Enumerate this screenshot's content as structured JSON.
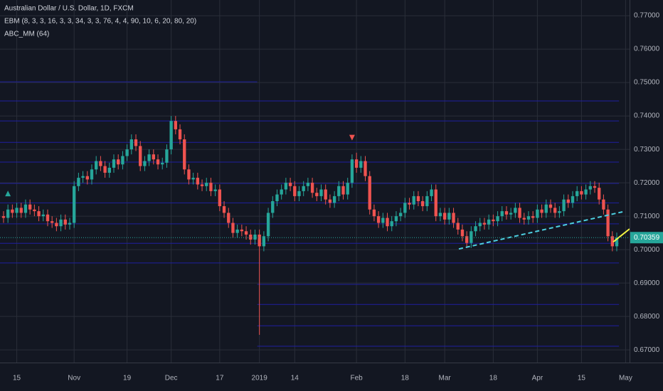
{
  "chart_data": {
    "type": "candlestick",
    "title": "Australian Dollar / U.S. Dollar, 1D, FXCM",
    "indicators": [
      "EBM (8, 3, 3, 16, 3, 3, 34, 3, 3, 76, 4, 4, 90, 10, 6, 20, 80, 20)",
      "ABC_MM (64)"
    ],
    "up_color": "#26a69a",
    "down_color": "#ef5350",
    "x": [
      0,
      1,
      2,
      3,
      4,
      5,
      6,
      7,
      8,
      9,
      10,
      11,
      12,
      13,
      14,
      15,
      16,
      17,
      18,
      19,
      20,
      21,
      22,
      23,
      24,
      25,
      26,
      27,
      28,
      29,
      30,
      31,
      32,
      33,
      34,
      35,
      36,
      37,
      38,
      39,
      40,
      41,
      42,
      43,
      44,
      45,
      46,
      47,
      48,
      49,
      50,
      51,
      52,
      53,
      54,
      55,
      56,
      57,
      58,
      59,
      60,
      61,
      62,
      63,
      64,
      65,
      66,
      67,
      68,
      69,
      70,
      71,
      72,
      73,
      74,
      75,
      76,
      77,
      78,
      79,
      80,
      81,
      82,
      83,
      84,
      85,
      86,
      87,
      88,
      89,
      90,
      91,
      92,
      93,
      94,
      95,
      96,
      97,
      98,
      99,
      100,
      101,
      102,
      103,
      104,
      105,
      106,
      107,
      108,
      109,
      110,
      111,
      112,
      113,
      114,
      115,
      116,
      117,
      118,
      119,
      120,
      121,
      122,
      123,
      124,
      125,
      126,
      127,
      128,
      129,
      130,
      131,
      132,
      133,
      134,
      135,
      136,
      137,
      138,
      139
    ],
    "ohlc": [
      [
        0.71,
        0.7115,
        0.708,
        0.7095
      ],
      [
        0.7095,
        0.7135,
        0.708,
        0.712
      ],
      [
        0.712,
        0.7135,
        0.7095,
        0.711
      ],
      [
        0.711,
        0.714,
        0.7095,
        0.7125
      ],
      [
        0.7125,
        0.714,
        0.7095,
        0.711
      ],
      [
        0.711,
        0.715,
        0.7095,
        0.7135
      ],
      [
        0.7135,
        0.715,
        0.7105,
        0.712
      ],
      [
        0.712,
        0.7135,
        0.71,
        0.7115
      ],
      [
        0.7115,
        0.713,
        0.7085,
        0.71
      ],
      [
        0.71,
        0.712,
        0.7085,
        0.7105
      ],
      [
        0.7105,
        0.712,
        0.707,
        0.7085
      ],
      [
        0.7085,
        0.71,
        0.7065,
        0.708
      ],
      [
        0.708,
        0.7095,
        0.7055,
        0.707
      ],
      [
        0.707,
        0.7105,
        0.7055,
        0.709
      ],
      [
        0.709,
        0.7105,
        0.706,
        0.7075
      ],
      [
        0.7075,
        0.7095,
        0.706,
        0.708
      ],
      [
        0.708,
        0.7205,
        0.7065,
        0.719
      ],
      [
        0.719,
        0.723,
        0.7175,
        0.7215
      ],
      [
        0.7215,
        0.7235,
        0.72,
        0.722
      ],
      [
        0.722,
        0.7235,
        0.7195,
        0.721
      ],
      [
        0.721,
        0.7255,
        0.7195,
        0.724
      ],
      [
        0.724,
        0.728,
        0.7225,
        0.7265
      ],
      [
        0.7265,
        0.728,
        0.7235,
        0.725
      ],
      [
        0.725,
        0.7265,
        0.7215,
        0.723
      ],
      [
        0.723,
        0.726,
        0.7215,
        0.7245
      ],
      [
        0.7245,
        0.7285,
        0.723,
        0.727
      ],
      [
        0.727,
        0.7285,
        0.724,
        0.7255
      ],
      [
        0.7255,
        0.7295,
        0.724,
        0.728
      ],
      [
        0.728,
        0.7315,
        0.7265,
        0.73
      ],
      [
        0.73,
        0.7345,
        0.7285,
        0.733
      ],
      [
        0.733,
        0.7345,
        0.7295,
        0.731
      ],
      [
        0.731,
        0.7325,
        0.7235,
        0.725
      ],
      [
        0.725,
        0.728,
        0.7235,
        0.7265
      ],
      [
        0.7265,
        0.73,
        0.725,
        0.7285
      ],
      [
        0.7285,
        0.73,
        0.7255,
        0.727
      ],
      [
        0.727,
        0.7285,
        0.724,
        0.7255
      ],
      [
        0.7255,
        0.7275,
        0.724,
        0.726
      ],
      [
        0.726,
        0.7315,
        0.7245,
        0.73
      ],
      [
        0.73,
        0.74,
        0.7285,
        0.7385
      ],
      [
        0.7385,
        0.74,
        0.7345,
        0.736
      ],
      [
        0.736,
        0.7375,
        0.7315,
        0.733
      ],
      [
        0.733,
        0.7345,
        0.7225,
        0.724
      ],
      [
        0.724,
        0.7255,
        0.7195,
        0.721
      ],
      [
        0.721,
        0.723,
        0.7195,
        0.7215
      ],
      [
        0.7215,
        0.723,
        0.718,
        0.7195
      ],
      [
        0.7195,
        0.721,
        0.7175,
        0.719
      ],
      [
        0.719,
        0.7215,
        0.7175,
        0.72
      ],
      [
        0.72,
        0.7215,
        0.716,
        0.7175
      ],
      [
        0.7175,
        0.7195,
        0.716,
        0.718
      ],
      [
        0.718,
        0.7195,
        0.7115,
        0.713
      ],
      [
        0.713,
        0.7145,
        0.7095,
        0.711
      ],
      [
        0.711,
        0.7125,
        0.7065,
        0.708
      ],
      [
        0.708,
        0.7095,
        0.7035,
        0.705
      ],
      [
        0.705,
        0.7075,
        0.7035,
        0.706
      ],
      [
        0.706,
        0.7075,
        0.704,
        0.7055
      ],
      [
        0.7055,
        0.707,
        0.703,
        0.7045
      ],
      [
        0.7045,
        0.706,
        0.7015,
        0.703
      ],
      [
        0.703,
        0.706,
        0.7015,
        0.7045
      ],
      [
        0.7045,
        0.706,
        0.6745,
        0.701
      ],
      [
        0.701,
        0.7055,
        0.6995,
        0.704
      ],
      [
        0.704,
        0.7125,
        0.7025,
        0.711
      ],
      [
        0.711,
        0.716,
        0.7095,
        0.7145
      ],
      [
        0.7145,
        0.718,
        0.713,
        0.7165
      ],
      [
        0.7165,
        0.7195,
        0.715,
        0.718
      ],
      [
        0.718,
        0.7215,
        0.7165,
        0.72
      ],
      [
        0.72,
        0.7215,
        0.7175,
        0.719
      ],
      [
        0.719,
        0.7205,
        0.7145,
        0.716
      ],
      [
        0.716,
        0.719,
        0.7145,
        0.7175
      ],
      [
        0.7175,
        0.7205,
        0.716,
        0.719
      ],
      [
        0.719,
        0.7215,
        0.7175,
        0.72
      ],
      [
        0.72,
        0.7215,
        0.7155,
        0.717
      ],
      [
        0.717,
        0.7185,
        0.7145,
        0.716
      ],
      [
        0.716,
        0.7195,
        0.7145,
        0.718
      ],
      [
        0.718,
        0.7195,
        0.7135,
        0.715
      ],
      [
        0.715,
        0.7165,
        0.7125,
        0.714
      ],
      [
        0.714,
        0.7175,
        0.7125,
        0.716
      ],
      [
        0.716,
        0.7205,
        0.7145,
        0.719
      ],
      [
        0.719,
        0.7205,
        0.715,
        0.7165
      ],
      [
        0.7165,
        0.7215,
        0.715,
        0.72
      ],
      [
        0.72,
        0.7285,
        0.7185,
        0.727
      ],
      [
        0.727,
        0.729,
        0.723,
        0.7245
      ],
      [
        0.7245,
        0.728,
        0.723,
        0.7265
      ],
      [
        0.7265,
        0.728,
        0.7205,
        0.722
      ],
      [
        0.722,
        0.7235,
        0.7105,
        0.712
      ],
      [
        0.712,
        0.7135,
        0.7085,
        0.71
      ],
      [
        0.71,
        0.7115,
        0.7065,
        0.708
      ],
      [
        0.708,
        0.711,
        0.7065,
        0.7095
      ],
      [
        0.7095,
        0.711,
        0.7055,
        0.707
      ],
      [
        0.707,
        0.71,
        0.7055,
        0.7085
      ],
      [
        0.7085,
        0.7115,
        0.707,
        0.71
      ],
      [
        0.71,
        0.7125,
        0.7085,
        0.711
      ],
      [
        0.711,
        0.7155,
        0.7095,
        0.714
      ],
      [
        0.714,
        0.7155,
        0.712,
        0.7135
      ],
      [
        0.7135,
        0.7175,
        0.712,
        0.716
      ],
      [
        0.716,
        0.7175,
        0.713,
        0.7145
      ],
      [
        0.7145,
        0.716,
        0.7115,
        0.713
      ],
      [
        0.713,
        0.7175,
        0.7115,
        0.716
      ],
      [
        0.716,
        0.7195,
        0.7145,
        0.718
      ],
      [
        0.718,
        0.7195,
        0.7085,
        0.71
      ],
      [
        0.71,
        0.7125,
        0.7085,
        0.711
      ],
      [
        0.711,
        0.7125,
        0.7075,
        0.709
      ],
      [
        0.709,
        0.7125,
        0.7075,
        0.711
      ],
      [
        0.711,
        0.7125,
        0.7065,
        0.708
      ],
      [
        0.708,
        0.7095,
        0.7045,
        0.706
      ],
      [
        0.706,
        0.7075,
        0.7025,
        0.704
      ],
      [
        0.704,
        0.7055,
        0.7005,
        0.702
      ],
      [
        0.702,
        0.707,
        0.7005,
        0.7055
      ],
      [
        0.7055,
        0.7085,
        0.704,
        0.707
      ],
      [
        0.707,
        0.7095,
        0.7055,
        0.708
      ],
      [
        0.708,
        0.7095,
        0.706,
        0.7075
      ],
      [
        0.7075,
        0.7105,
        0.706,
        0.709
      ],
      [
        0.709,
        0.7105,
        0.707,
        0.7085
      ],
      [
        0.7085,
        0.7115,
        0.707,
        0.71
      ],
      [
        0.71,
        0.713,
        0.7085,
        0.7115
      ],
      [
        0.7115,
        0.713,
        0.709,
        0.7105
      ],
      [
        0.7105,
        0.7125,
        0.709,
        0.711
      ],
      [
        0.711,
        0.714,
        0.7095,
        0.7125
      ],
      [
        0.7125,
        0.714,
        0.708,
        0.7095
      ],
      [
        0.7095,
        0.711,
        0.7075,
        0.709
      ],
      [
        0.709,
        0.7115,
        0.7075,
        0.71
      ],
      [
        0.71,
        0.7115,
        0.708,
        0.7095
      ],
      [
        0.7095,
        0.7135,
        0.708,
        0.712
      ],
      [
        0.712,
        0.7135,
        0.7095,
        0.711
      ],
      [
        0.711,
        0.715,
        0.7095,
        0.7135
      ],
      [
        0.7135,
        0.715,
        0.711,
        0.7125
      ],
      [
        0.7125,
        0.714,
        0.7095,
        0.711
      ],
      [
        0.711,
        0.713,
        0.7095,
        0.7115
      ],
      [
        0.7115,
        0.7165,
        0.71,
        0.715
      ],
      [
        0.715,
        0.7165,
        0.7125,
        0.714
      ],
      [
        0.714,
        0.7175,
        0.7125,
        0.716
      ],
      [
        0.716,
        0.719,
        0.7145,
        0.7175
      ],
      [
        0.7175,
        0.719,
        0.715,
        0.7165
      ],
      [
        0.7165,
        0.7195,
        0.715,
        0.718
      ],
      [
        0.718,
        0.7205,
        0.7165,
        0.719
      ],
      [
        0.719,
        0.7205,
        0.717,
        0.7185
      ],
      [
        0.7185,
        0.72,
        0.7135,
        0.715
      ],
      [
        0.715,
        0.7165,
        0.7105,
        0.712
      ],
      [
        0.712,
        0.7135,
        0.7025,
        0.704
      ],
      [
        0.704,
        0.7055,
        0.6995,
        0.701
      ],
      [
        0.701,
        0.7051,
        0.6995,
        0.70359
      ]
    ],
    "last_price": 0.70359,
    "last_price_color": "#26a69a",
    "levels": [
      {
        "from": -0.8,
        "to": 57.5,
        "color": "#1f1fa0",
        "values": [
          0.7502,
          0.7445,
          0.7385,
          0.7321,
          0.7262,
          0.7198,
          0.714,
          0.7077,
          0.7019,
          0.696
        ]
      },
      {
        "from": 57.5,
        "to": 139.5,
        "color": "#1f1fa0",
        "values": [
          0.7445,
          0.7385,
          0.7321,
          0.7262,
          0.7198,
          0.714,
          0.7077,
          0.7019,
          0.696,
          0.6896,
          0.6836,
          0.6772,
          0.6711
        ]
      }
    ],
    "trendlines": [
      {
        "color": "#4dd0e1",
        "dashed": true,
        "x": [
          103.2,
          140.3
        ],
        "y": [
          0.7002,
          0.7113
        ]
      },
      {
        "color": "#f5f542",
        "dashed": false,
        "x": [
          138.2,
          141.9
        ],
        "y": [
          0.7023,
          0.7062
        ]
      }
    ],
    "signals": [
      {
        "x": 1,
        "y": 0.7168,
        "direction": "up",
        "color": "#26a69a"
      },
      {
        "x": 79,
        "y": 0.7335,
        "direction": "down",
        "color": "#ef5350"
      }
    ],
    "xlim": [
      -0.8,
      141.9
    ],
    "ylim": [
      0.6662,
      0.7747
    ],
    "xticks": [
      {
        "value": 3,
        "label": "15"
      },
      {
        "value": 16,
        "label": "Nov"
      },
      {
        "value": 28,
        "label": "19"
      },
      {
        "value": 38,
        "label": "Dec"
      },
      {
        "value": 49,
        "label": "17"
      },
      {
        "value": 58,
        "label": "2019"
      },
      {
        "value": 66,
        "label": "14"
      },
      {
        "value": 80,
        "label": "Feb"
      },
      {
        "value": 91,
        "label": "18"
      },
      {
        "value": 100,
        "label": "Mar"
      },
      {
        "value": 111,
        "label": "18"
      },
      {
        "value": 121,
        "label": "Apr"
      },
      {
        "value": 131,
        "label": "15"
      },
      {
        "value": 141,
        "label": "May"
      }
    ],
    "yticks": [
      {
        "value": 0.67,
        "label": "0.67000"
      },
      {
        "value": 0.68,
        "label": "0.68000"
      },
      {
        "value": 0.69,
        "label": "0.69000"
      },
      {
        "value": 0.7,
        "label": "0.70000"
      },
      {
        "value": 0.71,
        "label": "0.71000"
      },
      {
        "value": 0.72,
        "label": "0.72000"
      },
      {
        "value": 0.73,
        "label": "0.73000"
      },
      {
        "value": 0.74,
        "label": "0.74000"
      },
      {
        "value": 0.75,
        "label": "0.75000"
      },
      {
        "value": 0.76,
        "label": "0.76000"
      },
      {
        "value": 0.77,
        "label": "0.77000"
      }
    ],
    "grid": true
  }
}
